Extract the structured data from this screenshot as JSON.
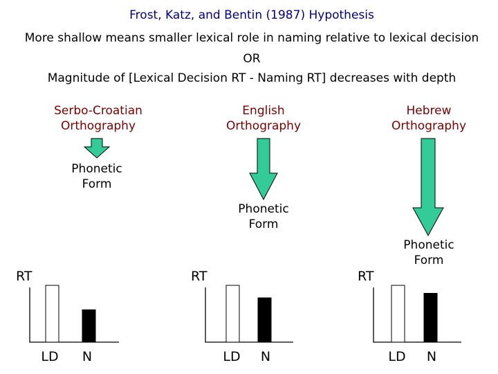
{
  "title": "Frost, Katz, and Bentin (1987) Hypothesis",
  "line1": "More shallow means smaller lexical role in naming relative to lexical decision",
  "or": "OR",
  "line2": "Magnitude of [Lexical Decision RT - Naming RT] decreases with depth",
  "colors": {
    "title": "#00007f",
    "orthography": "#7a0000",
    "arrow": "#33cc99"
  },
  "panels": [
    {
      "orthography": [
        "Serbo-Croatian",
        "Orthography"
      ],
      "phonetic": [
        "Phonetic",
        "Form"
      ],
      "axis_label": "RT",
      "bars": [
        {
          "label": "LD",
          "value": 1.0,
          "fill": "white"
        },
        {
          "label": "N",
          "value": 0.57,
          "fill": "black"
        }
      ]
    },
    {
      "orthography": [
        "English",
        "Orthography"
      ],
      "phonetic": [
        "Phonetic",
        "Form"
      ],
      "axis_label": "RT",
      "bars": [
        {
          "label": "LD",
          "value": 1.0,
          "fill": "white"
        },
        {
          "label": "N",
          "value": 0.78,
          "fill": "black"
        }
      ]
    },
    {
      "orthography": [
        "Hebrew",
        "Orthography"
      ],
      "phonetic": [
        "Phonetic",
        "Form"
      ],
      "axis_label": "RT",
      "bars": [
        {
          "label": "LD",
          "value": 1.0,
          "fill": "white"
        },
        {
          "label": "N",
          "value": 0.86,
          "fill": "black"
        }
      ]
    }
  ]
}
